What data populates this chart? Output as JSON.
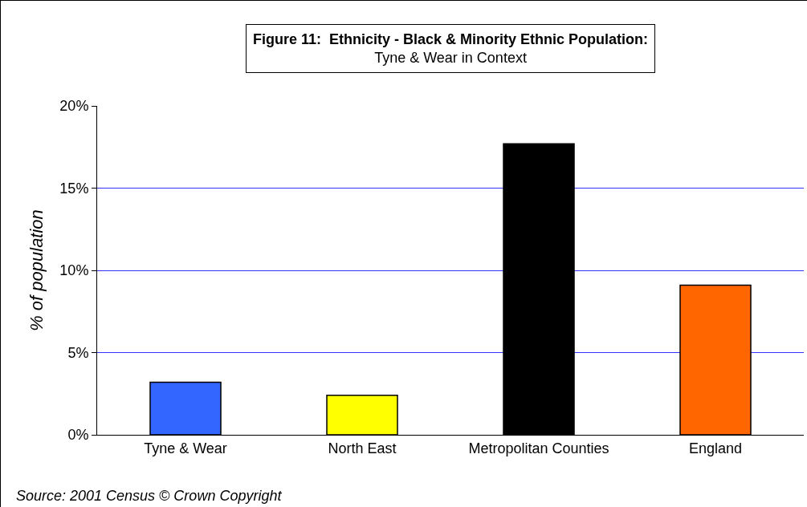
{
  "chart_data": {
    "type": "bar",
    "title": "Figure 11:  Ethnicity - Black & Minority Ethnic Population:",
    "subtitle": "Tyne & Wear in Context",
    "ylabel": "% of population",
    "categories": [
      "Tyne & Wear",
      "North East",
      "Metropolitan Counties",
      "England"
    ],
    "values": [
      3.2,
      2.4,
      17.7,
      9.1
    ],
    "colors": [
      "#3366ff",
      "#ffff00",
      "#000000",
      "#ff6600"
    ],
    "ylim": [
      0,
      20
    ],
    "yticks": [
      {
        "value": 0,
        "label": "0%"
      },
      {
        "value": 5,
        "label": "5%"
      },
      {
        "value": 10,
        "label": "10%"
      },
      {
        "value": 15,
        "label": "15%"
      },
      {
        "value": 20,
        "label": "20%"
      }
    ],
    "grid": "y",
    "annotations": [
      "Source: 2001 Census © Crown Copyright"
    ]
  }
}
